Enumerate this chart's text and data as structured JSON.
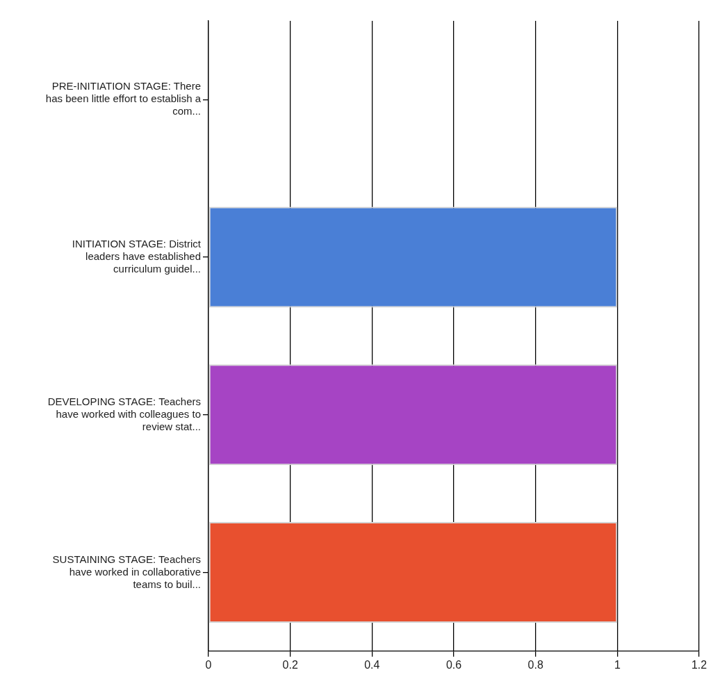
{
  "chart_data": {
    "type": "bar",
    "orientation": "horizontal",
    "categories": [
      "PRE-INITIATION STAGE: There has been little effort to establish a com...",
      "INITIATION STAGE: District leaders have established curriculum guidel...",
      "DEVELOPING STAGE: Teachers have worked with colleagues to review stat...",
      "SUSTAINING STAGE: Teachers have worked in collaborative teams to buil..."
    ],
    "values": [
      0,
      1,
      1,
      1
    ],
    "colors": [
      "#5b8fe0",
      "#4a7fd6",
      "#a644c4",
      "#e8502f"
    ],
    "xlim": [
      0,
      1.2
    ],
    "xticks": [
      0,
      0.2,
      0.4,
      0.6,
      0.8,
      1,
      1.2
    ],
    "grid": "x",
    "legend": false
  }
}
